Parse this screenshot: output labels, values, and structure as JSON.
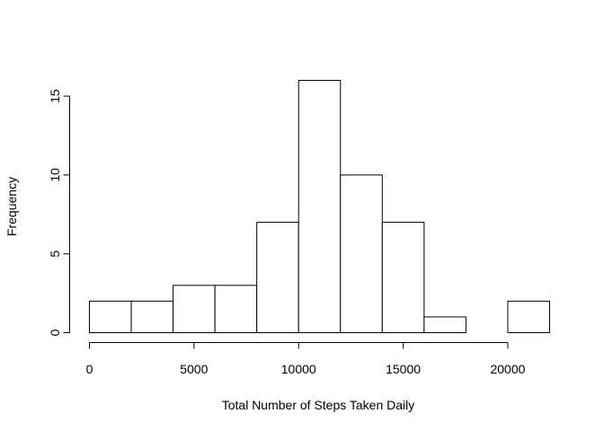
{
  "chart_data": {
    "type": "bar",
    "title": "",
    "xlabel": "Total Number of Steps Taken Daily",
    "ylabel": "Frequency",
    "bins": [
      {
        "from": 0,
        "to": 2000,
        "count": 2
      },
      {
        "from": 2000,
        "to": 4000,
        "count": 2
      },
      {
        "from": 4000,
        "to": 6000,
        "count": 3
      },
      {
        "from": 6000,
        "to": 8000,
        "count": 3
      },
      {
        "from": 8000,
        "to": 10000,
        "count": 7
      },
      {
        "from": 10000,
        "to": 12000,
        "count": 16
      },
      {
        "from": 12000,
        "to": 14000,
        "count": 10
      },
      {
        "from": 14000,
        "to": 16000,
        "count": 7
      },
      {
        "from": 16000,
        "to": 18000,
        "count": 1
      },
      {
        "from": 18000,
        "to": 20000,
        "count": 0
      },
      {
        "from": 20000,
        "to": 22000,
        "count": 2
      }
    ],
    "xlim": [
      0,
      22000
    ],
    "ylim": [
      0,
      16
    ],
    "x_ticks": [
      0,
      5000,
      10000,
      15000,
      20000
    ],
    "x_tick_labels": [
      "0",
      "5000",
      "10000",
      "15000",
      "20000"
    ],
    "y_ticks": [
      0,
      5,
      10,
      15
    ],
    "y_tick_labels": [
      "0",
      "5",
      "10",
      "15"
    ],
    "grid": false,
    "bar_fill": "#ffffff",
    "bar_stroke": "#000000"
  }
}
